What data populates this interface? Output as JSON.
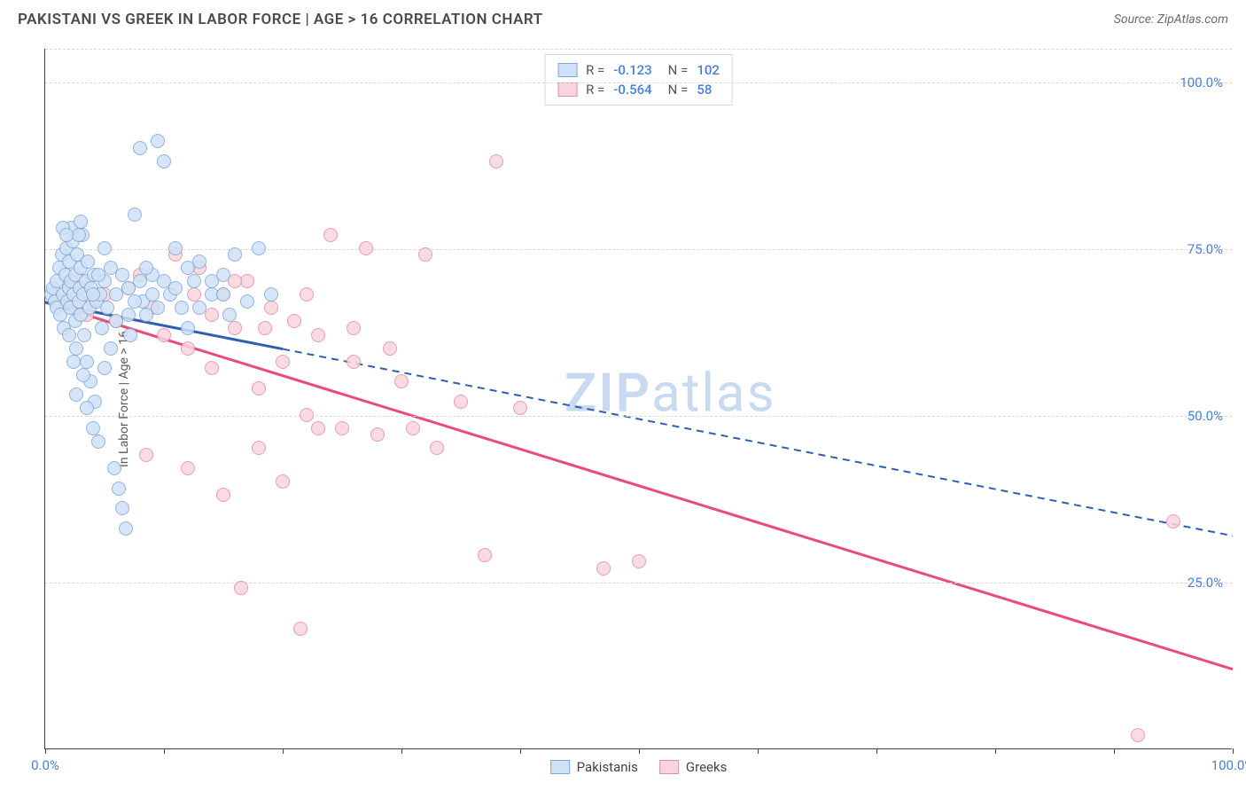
{
  "title": "PAKISTANI VS GREEK IN LABOR FORCE | AGE > 16 CORRELATION CHART",
  "source": "Source: ZipAtlas.com",
  "ylabel": "In Labor Force | Age > 16",
  "watermark": {
    "part1": "ZIP",
    "part2": "atlas",
    "color": "#c9d9ef"
  },
  "axis": {
    "xlim": [
      0,
      100
    ],
    "ylim": [
      0,
      105
    ],
    "x_ticks": [
      0,
      10,
      20,
      30,
      40,
      50,
      60,
      70,
      80,
      90,
      100
    ],
    "x_tick_labels": {
      "0": "0.0%",
      "100": "100.0%"
    },
    "y_gridlines": [
      25,
      50,
      75,
      100,
      105
    ],
    "y_tick_labels": {
      "25": "25.0%",
      "50": "50.0%",
      "75": "75.0%",
      "100": "100.0%"
    },
    "tick_label_color": "#4a80d4",
    "grid_color": "#d8d8d8",
    "axis_color": "#424242"
  },
  "series": {
    "pakistanis": {
      "label": "Pakistanis",
      "fill": "#cfe1f6",
      "stroke": "#7fa8d9",
      "trend_color": "#2f5fb0",
      "trend_dashed": true,
      "R": "-0.123",
      "N": "102",
      "trend": {
        "x1": 0,
        "y1": 67,
        "x2": 100,
        "y2": 32
      },
      "trend_solid_until_x": 20,
      "marker_radius": 8,
      "points": [
        [
          0.5,
          68
        ],
        [
          0.7,
          69
        ],
        [
          0.8,
          67
        ],
        [
          1.0,
          70
        ],
        [
          1.0,
          66
        ],
        [
          1.2,
          72
        ],
        [
          1.3,
          65
        ],
        [
          1.4,
          74
        ],
        [
          1.5,
          68
        ],
        [
          1.6,
          63
        ],
        [
          1.7,
          71
        ],
        [
          1.8,
          75
        ],
        [
          1.9,
          67
        ],
        [
          2.0,
          69
        ],
        [
          2.0,
          73
        ],
        [
          2.1,
          66
        ],
        [
          2.2,
          70
        ],
        [
          2.3,
          76
        ],
        [
          2.4,
          68
        ],
        [
          2.5,
          64
        ],
        [
          2.5,
          71
        ],
        [
          2.6,
          60
        ],
        [
          2.7,
          74
        ],
        [
          2.8,
          67
        ],
        [
          2.9,
          69
        ],
        [
          3.0,
          72
        ],
        [
          3.0,
          65
        ],
        [
          3.1,
          77
        ],
        [
          3.2,
          68
        ],
        [
          3.3,
          62
        ],
        [
          3.4,
          70
        ],
        [
          3.5,
          58
        ],
        [
          3.6,
          73
        ],
        [
          3.7,
          66
        ],
        [
          3.8,
          55
        ],
        [
          3.9,
          69
        ],
        [
          4.0,
          48
        ],
        [
          4.1,
          71
        ],
        [
          4.2,
          52
        ],
        [
          4.3,
          67
        ],
        [
          4.5,
          46
        ],
        [
          4.6,
          68
        ],
        [
          4.8,
          63
        ],
        [
          5.0,
          57
        ],
        [
          5.0,
          70
        ],
        [
          5.2,
          66
        ],
        [
          5.5,
          60
        ],
        [
          5.8,
          42
        ],
        [
          6.0,
          64
        ],
        [
          6.2,
          39
        ],
        [
          6.5,
          36
        ],
        [
          6.8,
          33
        ],
        [
          7.0,
          69
        ],
        [
          7.2,
          62
        ],
        [
          7.5,
          80
        ],
        [
          8.0,
          90
        ],
        [
          8.2,
          67
        ],
        [
          8.5,
          65
        ],
        [
          9.0,
          71
        ],
        [
          9.5,
          91
        ],
        [
          10.0,
          88
        ],
        [
          10.5,
          68
        ],
        [
          11.0,
          75
        ],
        [
          11.5,
          66
        ],
        [
          12.0,
          63
        ],
        [
          12.5,
          70
        ],
        [
          13.0,
          73
        ],
        [
          14.0,
          68
        ],
        [
          15.0,
          71
        ],
        [
          15.5,
          65
        ],
        [
          16.0,
          74
        ],
        [
          17.0,
          67
        ],
        [
          18.0,
          75
        ],
        [
          19.0,
          68
        ],
        [
          2.2,
          78
        ],
        [
          2.8,
          77
        ],
        [
          3.0,
          79
        ],
        [
          1.5,
          78
        ],
        [
          1.8,
          77
        ],
        [
          2.0,
          62
        ],
        [
          2.4,
          58
        ],
        [
          2.6,
          53
        ],
        [
          3.2,
          56
        ],
        [
          3.5,
          51
        ],
        [
          4.0,
          68
        ],
        [
          4.5,
          71
        ],
        [
          5.0,
          75
        ],
        [
          5.5,
          72
        ],
        [
          6.0,
          68
        ],
        [
          6.5,
          71
        ],
        [
          7.0,
          65
        ],
        [
          7.5,
          67
        ],
        [
          8.0,
          70
        ],
        [
          8.5,
          72
        ],
        [
          9.0,
          68
        ],
        [
          9.5,
          66
        ],
        [
          10.0,
          70
        ],
        [
          11.0,
          69
        ],
        [
          12.0,
          72
        ],
        [
          13.0,
          66
        ],
        [
          14.0,
          70
        ],
        [
          15.0,
          68
        ]
      ]
    },
    "greeks": {
      "label": "Greeks",
      "fill": "#f8d5de",
      "stroke": "#e88aa5",
      "trend_color": "#e84c7c",
      "trend_dashed": false,
      "R": "-0.564",
      "N": "58",
      "trend": {
        "x1": 0,
        "y1": 67,
        "x2": 100,
        "y2": 12
      },
      "marker_radius": 8,
      "points": [
        [
          1.0,
          68
        ],
        [
          1.5,
          67
        ],
        [
          2.0,
          69
        ],
        [
          2.5,
          66
        ],
        [
          3.0,
          70
        ],
        [
          3.5,
          65
        ],
        [
          4.0,
          67
        ],
        [
          5.0,
          68
        ],
        [
          6.0,
          64
        ],
        [
          7.0,
          69
        ],
        [
          8.0,
          71
        ],
        [
          9.0,
          66
        ],
        [
          10.0,
          62
        ],
        [
          11.0,
          74
        ],
        [
          12.0,
          60
        ],
        [
          13.0,
          72
        ],
        [
          14.0,
          57
        ],
        [
          15.0,
          68
        ],
        [
          16.0,
          63
        ],
        [
          17.0,
          70
        ],
        [
          18.0,
          54
        ],
        [
          19.0,
          66
        ],
        [
          20.0,
          58
        ],
        [
          21.0,
          64
        ],
        [
          22.0,
          50
        ],
        [
          23.0,
          62
        ],
        [
          24.0,
          77
        ],
        [
          25.0,
          48
        ],
        [
          26.0,
          63
        ],
        [
          27.0,
          75
        ],
        [
          28.0,
          47
        ],
        [
          29.0,
          60
        ],
        [
          30.0,
          55
        ],
        [
          31.0,
          48
        ],
        [
          32.0,
          74
        ],
        [
          33.0,
          45
        ],
        [
          35.0,
          52
        ],
        [
          37.0,
          29
        ],
        [
          38.0,
          88
        ],
        [
          40.0,
          51
        ],
        [
          8.5,
          44
        ],
        [
          12.0,
          42
        ],
        [
          15.0,
          38
        ],
        [
          16.5,
          24
        ],
        [
          18.0,
          45
        ],
        [
          20.0,
          40
        ],
        [
          21.5,
          18
        ],
        [
          23.0,
          48
        ],
        [
          47.0,
          27
        ],
        [
          50.0,
          28
        ],
        [
          12.5,
          68
        ],
        [
          14.0,
          65
        ],
        [
          16.0,
          70
        ],
        [
          18.5,
          63
        ],
        [
          22.0,
          68
        ],
        [
          26.0,
          58
        ],
        [
          92.0,
          2
        ],
        [
          95.0,
          34
        ]
      ]
    }
  },
  "legend_stat_color": "#4a80d4"
}
